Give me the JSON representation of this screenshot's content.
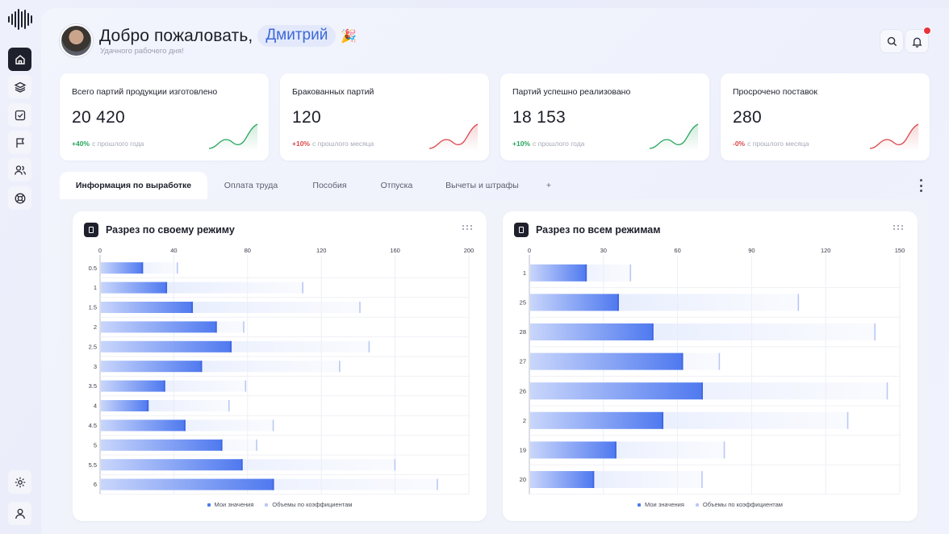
{
  "greeting": {
    "text": "Добро пожаловать,",
    "name": "Дмитрий",
    "emoji": "🎉",
    "subtitle": "Удачного рабочего дня!"
  },
  "stats": [
    {
      "title": "Всего партий продукции изготовлено",
      "value": "20 420",
      "delta": "+40%",
      "delta_label": "с прошлого года",
      "trend": "up"
    },
    {
      "title": "Бракованных партий",
      "value": "120",
      "delta": "+10%",
      "delta_label": "с прошлого месяца",
      "trend": "bad"
    },
    {
      "title": "Партий успешно реализовано",
      "value": "18 153",
      "delta": "+10%",
      "delta_label": "с прошлого года",
      "trend": "up"
    },
    {
      "title": "Просрочено поставок",
      "value": "280",
      "delta": "-0%",
      "delta_label": "с прошлого месяца",
      "trend": "bad"
    }
  ],
  "tabs": [
    {
      "label": "Информация по выработке",
      "active": true
    },
    {
      "label": "Оплата труда",
      "active": false
    },
    {
      "label": "Пособия",
      "active": false
    },
    {
      "label": "Отпуска",
      "active": false
    },
    {
      "label": "Вычеты и штрафы",
      "active": false
    },
    {
      "label": "+",
      "active": false
    }
  ],
  "colors": {
    "accent": "#3d68d8",
    "my_values": "#4f79ef",
    "coef_volumes": "#b9c8f6",
    "green": "#27a55c",
    "red": "#d8474b"
  },
  "icons": {
    "sidebar": [
      "home-icon",
      "layers-icon",
      "checkbox-icon",
      "flag-icon",
      "users-icon",
      "lifebuoy-icon"
    ],
    "sidebar_bottom": [
      "settings-icon",
      "user-icon"
    ],
    "header": [
      "search-icon",
      "bell-icon"
    ]
  },
  "chart_data": [
    {
      "type": "bar",
      "orientation": "horizontal",
      "title": "Разрез по своему режиму",
      "categories": [
        "0.5",
        "1",
        "1.5",
        "2",
        "2.5",
        "3",
        "3.5",
        "4",
        "4.5",
        "5",
        "5.5",
        "6"
      ],
      "series": [
        {
          "name": "Мои значения",
          "values": [
            23,
            36,
            50,
            63,
            71,
            55,
            35,
            26,
            46,
            66,
            77,
            94
          ]
        },
        {
          "name": "Объемы по коэффициентам",
          "values": [
            42,
            110,
            141,
            78,
            146,
            130,
            79,
            70,
            94,
            85,
            160,
            183
          ]
        }
      ],
      "xlim": [
        0,
        200
      ],
      "xticks": [
        0,
        40,
        80,
        120,
        160,
        200
      ],
      "grid": true,
      "legend": "bottom"
    },
    {
      "type": "bar",
      "orientation": "horizontal",
      "title": "Разрез по всем режимам",
      "categories": [
        "1",
        "25",
        "28",
        "27",
        "26",
        "2",
        "19",
        "20"
      ],
      "series": [
        {
          "name": "Мои значения",
          "values": [
            23,
            36,
            50,
            62,
            70,
            54,
            35,
            26
          ]
        },
        {
          "name": "Объемы по коэффициентам",
          "values": [
            41,
            109,
            140,
            77,
            145,
            129,
            79,
            70
          ]
        }
      ],
      "xlim": [
        0,
        150
      ],
      "xticks": [
        0,
        30,
        60,
        90,
        120,
        150
      ],
      "grid": true,
      "legend": "bottom"
    }
  ]
}
